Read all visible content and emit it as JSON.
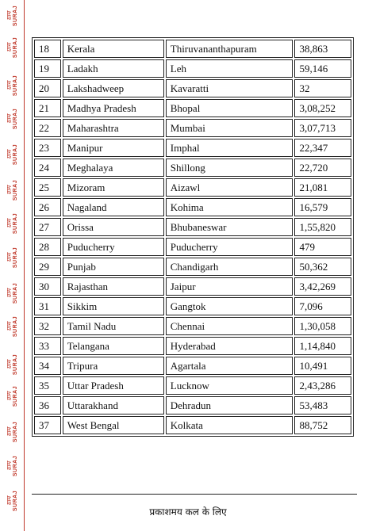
{
  "watermark": {
    "script": "ग्राम",
    "text": "SURAJ"
  },
  "table": {
    "rows": [
      {
        "num": "18",
        "state": "Kerala",
        "capital": "Thiruvananthapuram",
        "area": "38,863"
      },
      {
        "num": "19",
        "state": "Ladakh",
        "capital": "Leh",
        "area": "59,146"
      },
      {
        "num": "20",
        "state": "Lakshadweep",
        "capital": "Kavaratti",
        "area": "32"
      },
      {
        "num": "21",
        "state": "Madhya Pradesh",
        "capital": "Bhopal",
        "area": "3,08,252"
      },
      {
        "num": "22",
        "state": "Maharashtra",
        "capital": "Mumbai",
        "area": "3,07,713"
      },
      {
        "num": "23",
        "state": "Manipur",
        "capital": "Imphal",
        "area": "22,347"
      },
      {
        "num": "24",
        "state": "Meghalaya",
        "capital": "Shillong",
        "area": "22,720"
      },
      {
        "num": "25",
        "state": "Mizoram",
        "capital": "Aizawl",
        "area": "21,081"
      },
      {
        "num": "26",
        "state": "Nagaland",
        "capital": "Kohima",
        "area": "16,579"
      },
      {
        "num": "27",
        "state": "Orissa",
        "capital": "Bhubaneswar",
        "area": "1,55,820"
      },
      {
        "num": "28",
        "state": "Puducherry",
        "capital": "Puducherry",
        "area": "479"
      },
      {
        "num": "29",
        "state": "Punjab",
        "capital": "Chandigarh",
        "area": "50,362"
      },
      {
        "num": "30",
        "state": "Rajasthan",
        "capital": "Jaipur",
        "area": "3,42,269"
      },
      {
        "num": "31",
        "state": "Sikkim",
        "capital": "Gangtok",
        "area": "7,096"
      },
      {
        "num": "32",
        "state": "Tamil Nadu",
        "capital": "Chennai",
        "area": "1,30,058"
      },
      {
        "num": "33",
        "state": "Telangana",
        "capital": "Hyderabad",
        "area": "1,14,840"
      },
      {
        "num": "34",
        "state": "Tripura",
        "capital": "Agartala",
        "area": "10,491"
      },
      {
        "num": "35",
        "state": "Uttar Pradesh",
        "capital": "Lucknow",
        "area": "2,43,286"
      },
      {
        "num": "36",
        "state": "Uttarakhand",
        "capital": "Dehradun",
        "area": "53,483"
      },
      {
        "num": "37",
        "state": "West Bengal",
        "capital": "Kolkata",
        "area": "88,752"
      }
    ]
  },
  "footer": {
    "text": "प्रकाशमय कल के लिए"
  }
}
